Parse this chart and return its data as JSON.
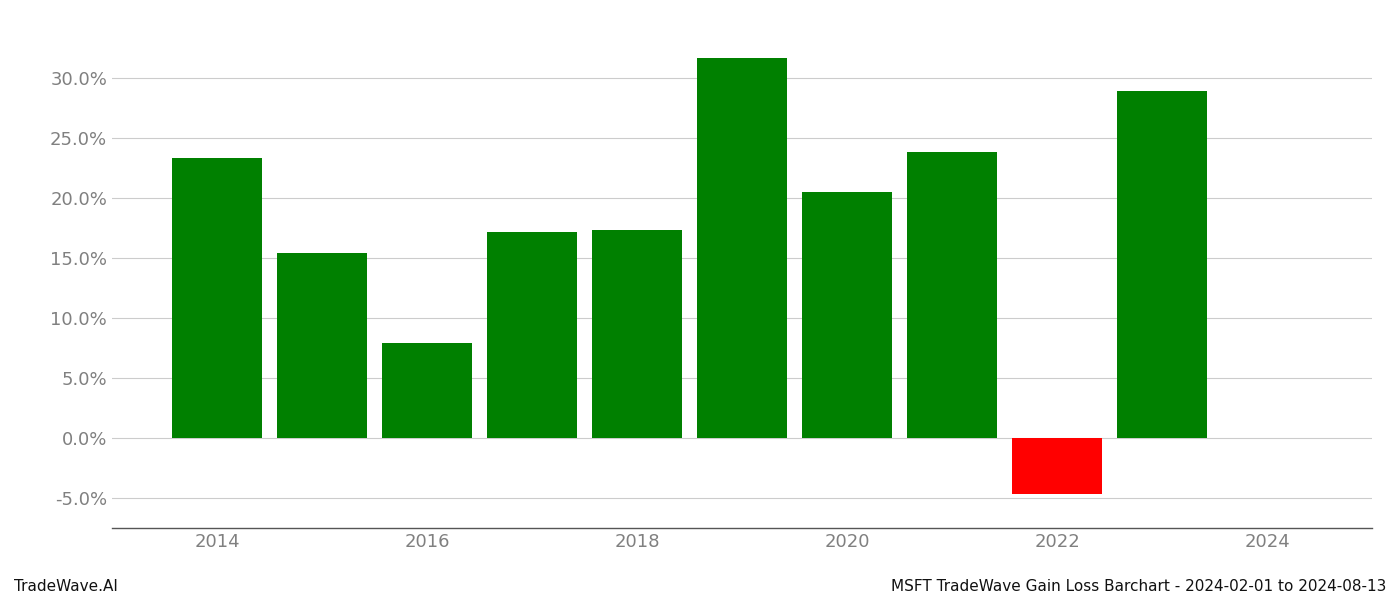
{
  "years": [
    2014,
    2015,
    2016,
    2017,
    2018,
    2019,
    2020,
    2021,
    2022,
    2023
  ],
  "values": [
    0.233,
    0.154,
    0.079,
    0.172,
    0.173,
    0.317,
    0.205,
    0.238,
    -0.047,
    0.289
  ],
  "bar_colors": [
    "#008000",
    "#008000",
    "#008000",
    "#008000",
    "#008000",
    "#008000",
    "#008000",
    "#008000",
    "#ff0000",
    "#008000"
  ],
  "ylabel_ticks": [
    -0.05,
    0.0,
    0.05,
    0.1,
    0.15,
    0.2,
    0.25,
    0.3
  ],
  "ylim": [
    -0.075,
    0.345
  ],
  "xlim": [
    2013.0,
    2025.0
  ],
  "xticks": [
    2014,
    2016,
    2018,
    2020,
    2022,
    2024
  ],
  "footer_left": "TradeWave.AI",
  "footer_right": "MSFT TradeWave Gain Loss Barchart - 2024-02-01 to 2024-08-13",
  "bar_width": 0.85,
  "grid_color": "#cccccc",
  "background_color": "#ffffff",
  "text_color": "#808080",
  "tick_fontsize": 13,
  "footer_fontsize": 11
}
